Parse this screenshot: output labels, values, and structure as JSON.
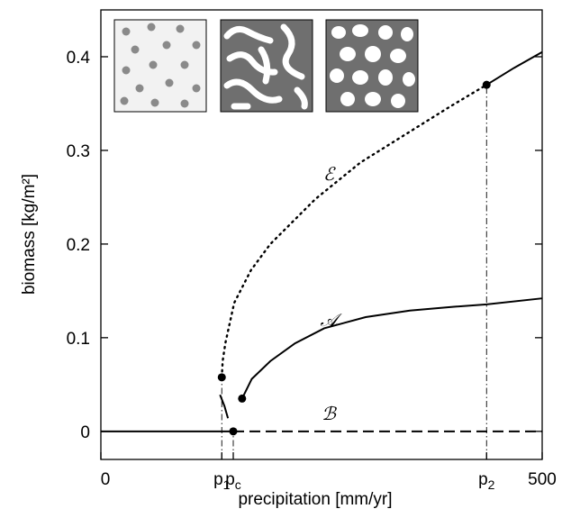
{
  "chart_data": {
    "type": "line",
    "xlabel": "precipitation [mm/yr]",
    "ylabel": "biomass [kg/m²]",
    "xlim": [
      0,
      500
    ],
    "ylim": [
      -0.03,
      0.45
    ],
    "xticks": [
      0,
      {
        "value": 137,
        "label": "p",
        "subscript": "1"
      },
      {
        "value": 150,
        "label": "p",
        "subscript": "c"
      },
      {
        "value": 437,
        "label": "p",
        "subscript": "2"
      },
      500
    ],
    "yticks": [
      0,
      0.1,
      0.2,
      0.3,
      0.4
    ],
    "series": [
      {
        "name": "ℬ",
        "color": "#000000",
        "segments": [
          {
            "dash": "solid",
            "x": [
              0,
              150
            ],
            "values": [
              0,
              0
            ]
          },
          {
            "dash": "dashed",
            "x": [
              150,
              500
            ],
            "values": [
              0,
              0
            ]
          }
        ]
      },
      {
        "name": "𝒜",
        "color": "#000000",
        "segments": [
          {
            "dash": "solid",
            "x": [
              135,
              140,
              144
            ],
            "values": [
              0.039,
              0.027,
              0.014
            ]
          },
          {
            "dash": "solid",
            "x": [
              160,
              171,
              192,
              220,
              253,
              300,
              350,
              400,
              437,
              500
            ],
            "values": [
              0.035,
              0.056,
              0.075,
              0.094,
              0.11,
              0.122,
              0.129,
              0.133,
              0.1356,
              0.142
            ]
          }
        ]
      },
      {
        "name": "ℰ",
        "color": "#000000",
        "segments": [
          {
            "dash": "dotted",
            "x": [
              137,
              138,
              141,
              151,
              170,
              192,
              243,
              294,
              345,
              396,
              437
            ],
            "values": [
              0.0577,
              0.075,
              0.094,
              0.137,
              0.172,
              0.2,
              0.248,
              0.287,
              0.317,
              0.347,
              0.37
            ]
          },
          {
            "dash": "solid",
            "x": [
              437,
              468,
              500
            ],
            "values": [
              0.37,
              0.388,
              0.405
            ]
          }
        ]
      }
    ],
    "points": {
      "color": "#000000",
      "x": [
        137,
        150,
        160,
        437
      ],
      "values": [
        0.0577,
        0,
        0.035,
        0.37
      ]
    }
  }
}
